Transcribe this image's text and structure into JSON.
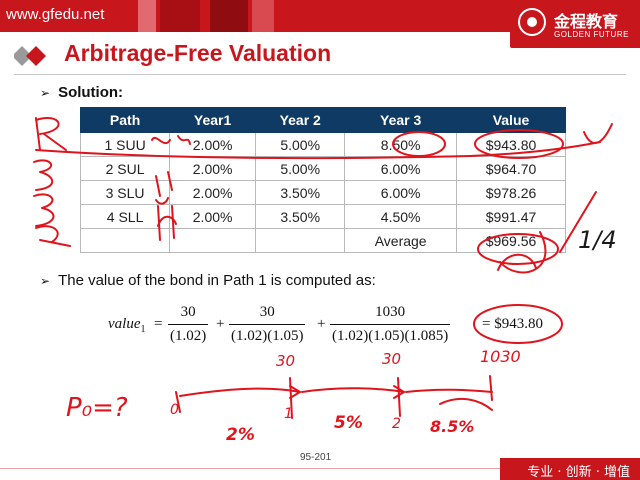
{
  "header": {
    "site": "www.gfedu.net",
    "logo_cn": "金程教育",
    "logo_en": "GOLDEN FUTURE"
  },
  "slide": {
    "title": "Arbitrage-Free Valuation",
    "bullet_solution": "Solution:",
    "bullet_path1": "The value of the bond in Path 1 is computed as:",
    "page_number": "95-201",
    "footer_slogan": "专业 · 创新 · 增值"
  },
  "table": {
    "headers": [
      "Path",
      "Year1",
      "Year 2",
      "Year 3",
      "Value"
    ],
    "rows": [
      [
        "1 SUU",
        "2.00%",
        "5.00%",
        "8.50%",
        "$943.80"
      ],
      [
        "2 SUL",
        "2.00%",
        "5.00%",
        "6.00%",
        "$964.70"
      ],
      [
        "3 SLU",
        "2.00%",
        "3.50%",
        "6.00%",
        "$978.26"
      ],
      [
        "4 SLL",
        "2.00%",
        "3.50%",
        "4.50%",
        "$991.47"
      ]
    ],
    "average_label": "Average",
    "average_value": "$969.56"
  },
  "formula": {
    "lhs": "value",
    "lhs_sub": "1",
    "eq": "=",
    "plus": "+",
    "t1_num": "30",
    "t1_den": "(1.02)",
    "t2_num": "30",
    "t2_den": "(1.02)(1.05)",
    "t3_num": "1030",
    "t3_den": "(1.02)(1.05)(1.085)",
    "result": "= $943.80"
  },
  "handwriting": {
    "cf1": "30",
    "cf2": "30",
    "cf3": "1030",
    "p0": "P₀=?",
    "r1": "2%",
    "r2": "5%",
    "r3": "8.5%",
    "t0": "0",
    "t1": "1",
    "t2": "2",
    "quarter": "1/4",
    "ink_color": "#e0141c"
  }
}
